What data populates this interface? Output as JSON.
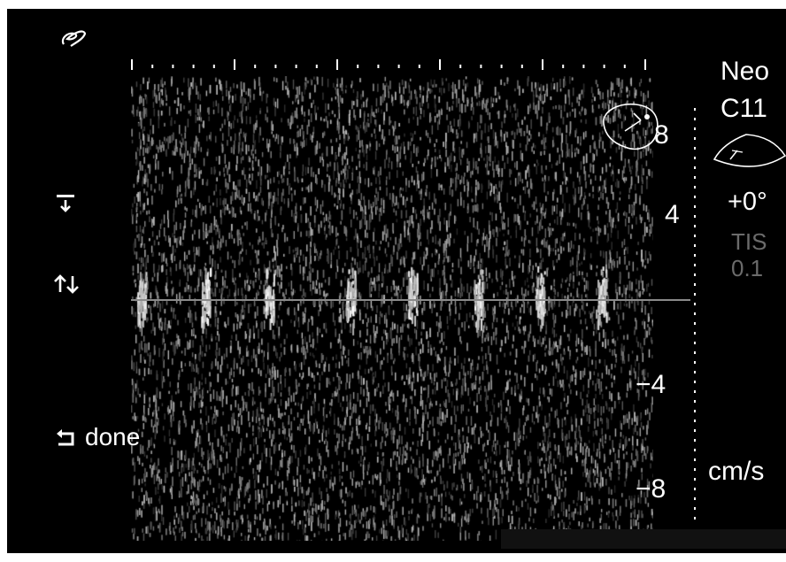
{
  "header": {
    "preset": "Neo",
    "probe": "C11",
    "steer_angle": "+0°",
    "tis_label": "TIS",
    "tis_value": "0.1"
  },
  "scale": {
    "labels": [
      "8",
      "4",
      "−4",
      "−8"
    ],
    "unit": "cm/s"
  },
  "controls": {
    "done_label": "done"
  },
  "icons": {
    "logo": "ge-logo-icon",
    "baseline_marker": "baseline-down-icon",
    "invert": "invert-arrows-icon",
    "done": "return-arrow-icon",
    "probe_trace": "probe-sector-icon",
    "anatomy_trace": "anatomy-outline-icon"
  },
  "colors": {
    "background": "#000000",
    "text": "#ffffff",
    "dim_text": "#6b6b6b",
    "baseline": "#8a8a8a"
  }
}
